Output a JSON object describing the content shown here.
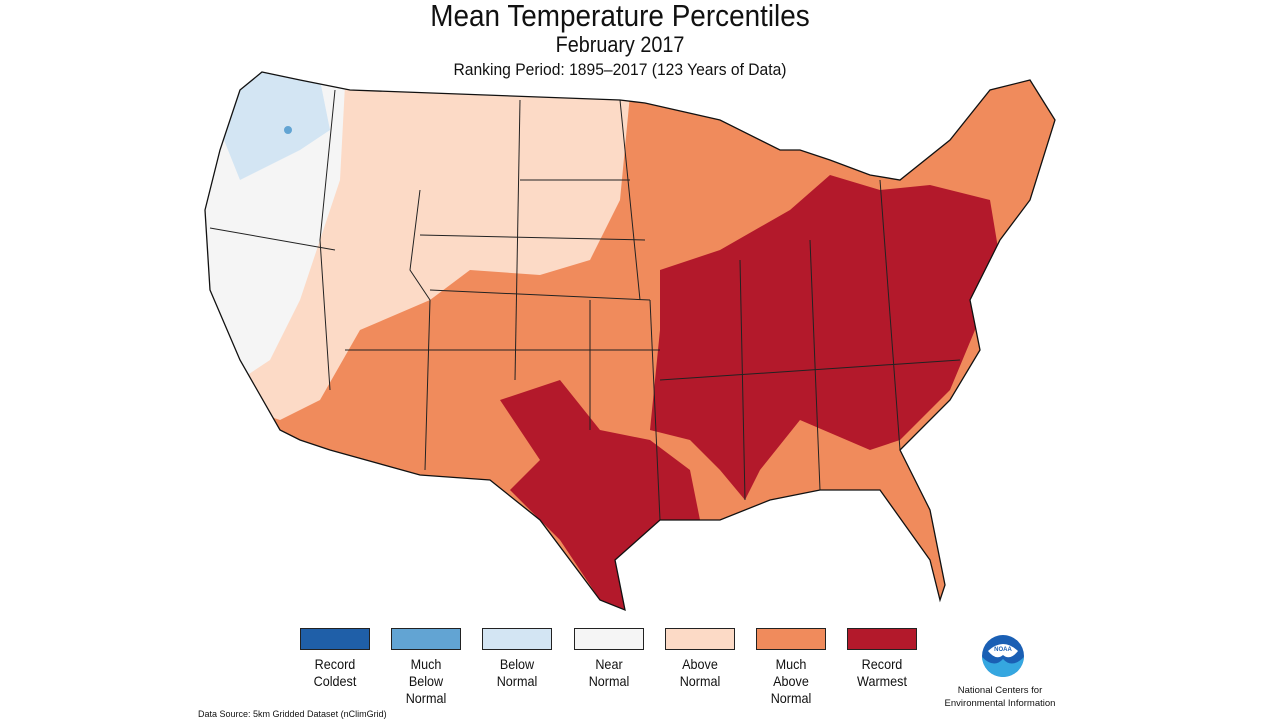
{
  "title": "Mean Temperature Percentiles",
  "subtitle": "February 2017",
  "ranking_period": "Ranking Period: 1895–2017 (123 Years of Data)",
  "legend": [
    {
      "line1": "Record",
      "line2": "Coldest",
      "line3": "",
      "color": "#1f5fa8"
    },
    {
      "line1": "Much",
      "line2": "Below",
      "line3": "Normal",
      "color": "#62a4d3"
    },
    {
      "line1": "Below",
      "line2": "Normal",
      "line3": "",
      "color": "#d3e5f3"
    },
    {
      "line1": "Near",
      "line2": "Normal",
      "line3": "",
      "color": "#f5f5f5"
    },
    {
      "line1": "Above",
      "line2": "Normal",
      "line3": "",
      "color": "#fcdac6"
    },
    {
      "line1": "Much",
      "line2": "Above",
      "line3": "Normal",
      "color": "#f08b5c"
    },
    {
      "line1": "Record",
      "line2": "Warmest",
      "line3": "",
      "color": "#b3192b"
    }
  ],
  "data_source": "Data Source: 5km Gridded Dataset (nClimGrid)",
  "org": {
    "line1": "National Centers for",
    "line2": "Environmental Information",
    "logo_text": "NOAA"
  }
}
